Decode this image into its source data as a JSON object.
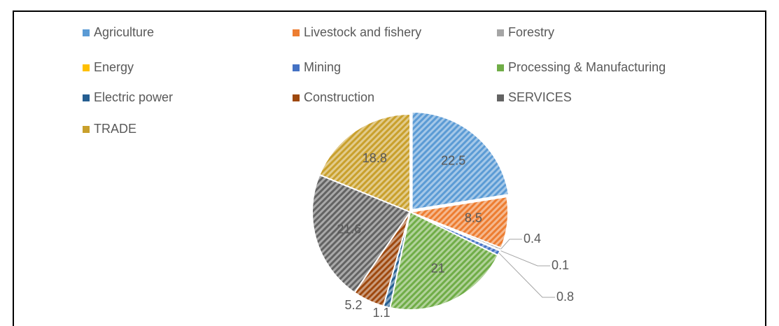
{
  "chart_data": {
    "type": "pie",
    "categories": [
      "Agriculture",
      "Livestock and fishery",
      "Forestry",
      "Energy",
      "Mining",
      "Processing & Manufacturing",
      "Electric power",
      "Construction",
      "SERVICES",
      "TRADE"
    ],
    "values": [
      22.5,
      8.5,
      0.4,
      0.1,
      0.8,
      21,
      1.1,
      5.2,
      21.6,
      18.8
    ],
    "colors": [
      "#5b9bd5",
      "#ed7d31",
      "#a5a5a5",
      "#ffc000",
      "#4472c4",
      "#70ad47",
      "#255e91",
      "#9e480e",
      "#636363",
      "#c9a02c"
    ],
    "legend": "top"
  }
}
